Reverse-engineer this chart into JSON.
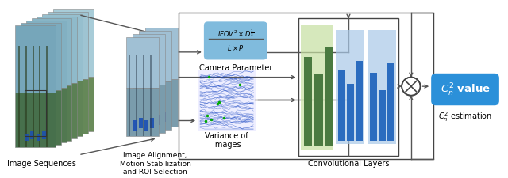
{
  "bg_color": "#ffffff",
  "img_seq_label": "Image Sequences",
  "align_label": "Image Alignment,\nMotion Stabilization\nand ROI Selection",
  "cam_param_label": "Camera Parameter",
  "conv_label": "Convolutional Layers",
  "var_label": "Variance of\nImages",
  "cn2_label_main": "$C_n^2$ value",
  "cn2_label_sub": "$C_n^2$ estimation",
  "label_fontsize": 7.0,
  "cn2_fontsize": 9.5,
  "formula_color": "#6ab0d8",
  "cn2_box_color": "#2b90d9",
  "cn2_box_text_color": "#ffffff",
  "green_bar_color": "#4a7a40",
  "green_bg_color": "#c5dfa0",
  "blue_bar_color": "#2b6cbf",
  "blue_bg_color": "#a8c8e8",
  "arrow_color": "#555555",
  "outer_box_color": "#444444",
  "lw": 1.0
}
